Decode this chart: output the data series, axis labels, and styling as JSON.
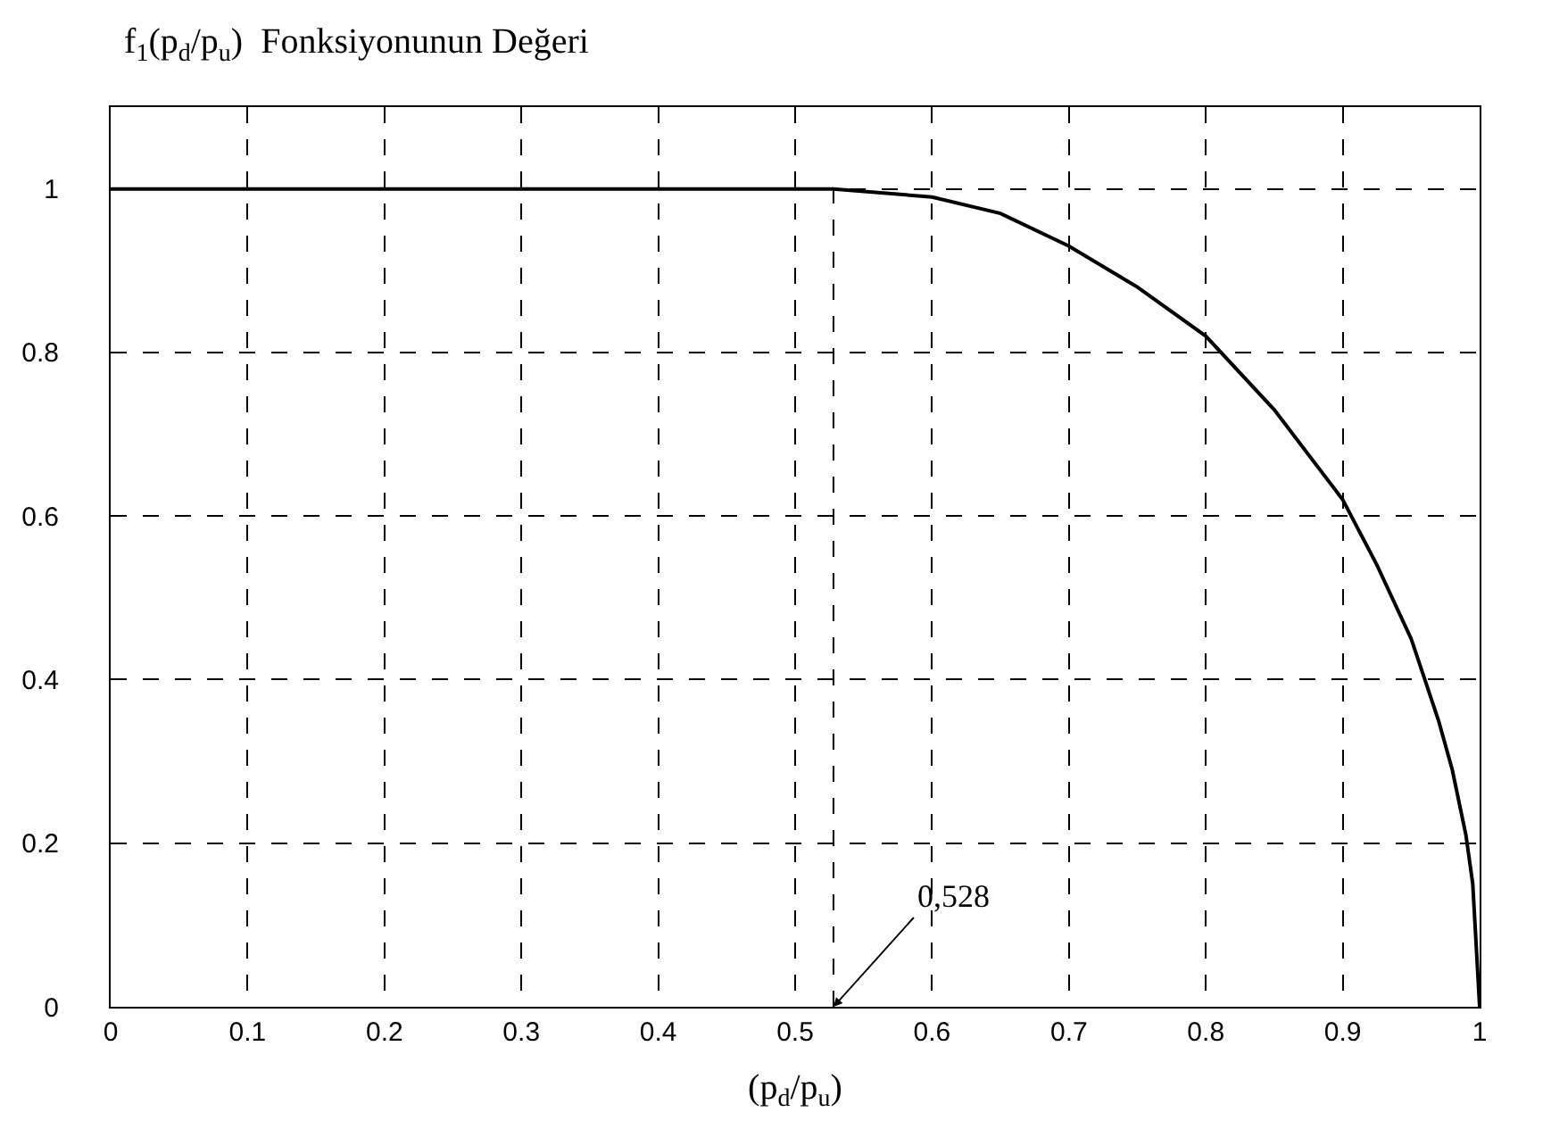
{
  "chart_data": {
    "type": "line",
    "title": "f$_{1}$(p$_{d}$/p$_{u}$)  Fonksiyonunun Değeri",
    "xlabel": "(p$_{d}$/p$_{u}$)",
    "x": [
      0,
      0.1,
      0.2,
      0.3,
      0.4,
      0.5,
      0.528,
      0.6,
      0.65,
      0.7,
      0.75,
      0.8,
      0.85,
      0.9,
      0.925,
      0.95,
      0.97,
      0.98,
      0.99,
      0.995,
      1
    ],
    "series": [
      {
        "color": "#000000",
        "values": [
          1,
          1,
          1,
          1,
          1,
          1,
          1,
          0.99,
          0.97,
          0.93,
          0.88,
          0.82,
          0.73,
          0.62,
          0.54,
          0.45,
          0.35,
          0.29,
          0.21,
          0.15,
          0
        ]
      }
    ],
    "xlim": [
      0,
      1
    ],
    "xticks": [
      0,
      0.1,
      0.2,
      0.3,
      0.4,
      0.5,
      0.6,
      0.7,
      0.8,
      0.9,
      1
    ],
    "ylim": [
      0,
      1.1
    ],
    "yticks": [
      0,
      0.2,
      0.4,
      0.6,
      0.8,
      1
    ],
    "ref_lines": [
      {
        "axis": "x",
        "value": 0.528,
        "label": "0,528",
        "color": "#000000",
        "line_style": "dashed"
      }
    ],
    "grid": true,
    "marker": "none",
    "line_style": "solid"
  }
}
